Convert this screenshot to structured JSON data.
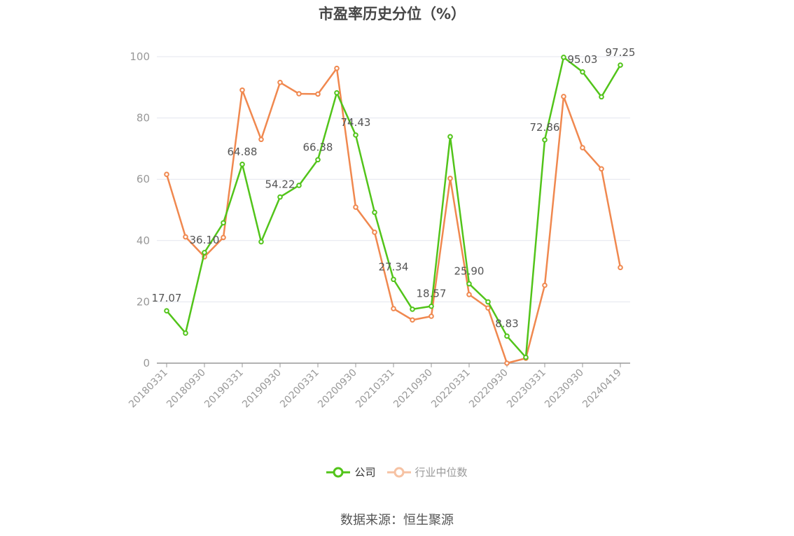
{
  "chart_data": {
    "type": "line",
    "title": "市盈率历史分位（%）",
    "xlabel": "",
    "ylabel": "",
    "ylim": [
      0,
      100
    ],
    "yticks": [
      0,
      20,
      40,
      60,
      80,
      100
    ],
    "grid": true,
    "legend_position": "bottom",
    "x": [
      "20180331",
      "20180630",
      "20180930",
      "20181231",
      "20190331",
      "20190630",
      "20190930",
      "20191231",
      "20200331",
      "20200630",
      "20200930",
      "20201231",
      "20210331",
      "20210630",
      "20210930",
      "20211231",
      "20220331",
      "20220630",
      "20220930",
      "20221231",
      "20230331",
      "20230630",
      "20230930",
      "20231231",
      "20240419"
    ],
    "x_tick_labels": [
      "20180331",
      "20180930",
      "20190331",
      "20190930",
      "20200331",
      "20200930",
      "20210331",
      "20210930",
      "20220331",
      "20220930",
      "20230331",
      "20230930",
      "20240419"
    ],
    "series": [
      {
        "name": "公司",
        "color": "#52c41a",
        "values": [
          17.07,
          9.8,
          36.1,
          45.8,
          64.88,
          39.6,
          54.22,
          58.0,
          66.38,
          88.2,
          74.43,
          49.2,
          27.34,
          17.6,
          18.57,
          73.9,
          25.9,
          20.0,
          8.83,
          1.9,
          72.86,
          99.8,
          95.03,
          86.9,
          97.25
        ],
        "data_labels": {
          "0": "17.07",
          "2": "36.10",
          "4": "64.88",
          "6": "54.22",
          "8": "66.38",
          "10": "74.43",
          "12": "27.34",
          "14": "18.57",
          "16": "25.90",
          "18": "8.83",
          "20": "72.86",
          "22": "95.03",
          "24": "97.25"
        }
      },
      {
        "name": "行业中位数",
        "color": "#f0884f",
        "values": [
          61.6,
          41.2,
          34.7,
          41.0,
          89.1,
          73.0,
          91.6,
          87.9,
          87.8,
          96.2,
          50.9,
          42.7,
          17.8,
          14.1,
          15.3,
          60.3,
          22.4,
          18.0,
          0.0,
          1.6,
          25.4,
          87.0,
          70.3,
          63.4,
          31.2
        ]
      }
    ]
  },
  "legend": {
    "company_label": "公司",
    "industry_label": "行业中位数",
    "inactive_color": "#f6c2a3"
  },
  "footer": {
    "source_text": "数据来源：恒生聚源"
  }
}
